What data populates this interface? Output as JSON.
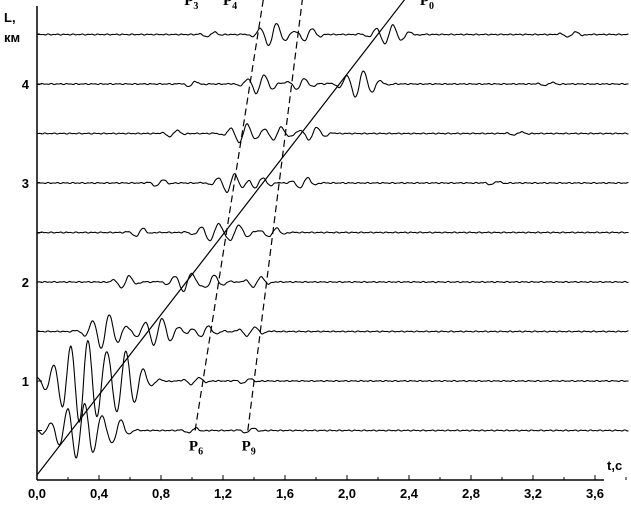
{
  "chart_data": {
    "type": "line",
    "xlabel": "t,c",
    "ylabel_line1": "L,",
    "ylabel_line2": "км",
    "xlim": [
      0,
      3.85
    ],
    "ylim": [
      0,
      4.95
    ],
    "x_ticks": [
      0,
      0.4,
      0.8,
      1.2,
      1.6,
      2.0,
      2.4,
      2.8,
      3.2,
      3.6
    ],
    "x_tick_labels": [
      "0,0",
      "0,4",
      "0,8",
      "1,2",
      "1,6",
      "2,0",
      "2,4",
      "2,8",
      "3,2",
      "3,6"
    ],
    "y_ticks": [
      1,
      2,
      3,
      4
    ],
    "y_tick_labels": [
      "1",
      "2",
      "3",
      "4"
    ],
    "trace_offsets": [
      0.5,
      1.0,
      1.5,
      2.0,
      2.5,
      3.0,
      3.5,
      4.0,
      4.5
    ],
    "trace_end_time": 3.82,
    "trace_events": [
      [
        [
          0.28,
          0.28,
          0.12
        ],
        [
          0.52,
          0.1,
          0.05
        ],
        [
          1.0,
          0.03,
          0.04
        ],
        [
          1.37,
          0.03,
          0.04
        ]
      ],
      [
        [
          0.3,
          0.42,
          0.14
        ],
        [
          0.55,
          0.3,
          0.1
        ],
        [
          1.02,
          0.04,
          0.05
        ],
        [
          1.35,
          0.03,
          0.04
        ]
      ],
      [
        [
          0.44,
          0.18,
          0.08
        ],
        [
          0.78,
          0.14,
          0.09
        ],
        [
          1.08,
          0.06,
          0.06
        ],
        [
          1.38,
          0.05,
          0.06
        ]
      ],
      [
        [
          0.57,
          0.07,
          0.05
        ],
        [
          0.97,
          0.1,
          0.08
        ],
        [
          1.12,
          0.08,
          0.06
        ],
        [
          1.42,
          0.06,
          0.05
        ]
      ],
      [
        [
          0.66,
          0.05,
          0.04
        ],
        [
          1.14,
          0.09,
          0.08
        ],
        [
          1.28,
          0.08,
          0.07
        ],
        [
          1.52,
          0.05,
          0.05
        ]
      ],
      [
        [
          0.79,
          0.04,
          0.04
        ],
        [
          1.25,
          0.1,
          0.07
        ],
        [
          1.43,
          0.06,
          0.06
        ],
        [
          1.72,
          0.06,
          0.05
        ],
        [
          2.95,
          0.02,
          0.04
        ]
      ],
      [
        [
          0.88,
          0.04,
          0.04
        ],
        [
          1.33,
          0.1,
          0.07
        ],
        [
          1.55,
          0.07,
          0.06
        ],
        [
          1.78,
          0.07,
          0.06
        ],
        [
          3.1,
          0.02,
          0.04
        ]
      ],
      [
        [
          1.0,
          0.03,
          0.04
        ],
        [
          1.44,
          0.1,
          0.07
        ],
        [
          1.7,
          0.06,
          0.06
        ],
        [
          2.08,
          0.14,
          0.08
        ],
        [
          3.3,
          0.02,
          0.04
        ]
      ],
      [
        [
          1.12,
          0.03,
          0.04
        ],
        [
          1.52,
          0.12,
          0.07
        ],
        [
          1.75,
          0.07,
          0.05
        ],
        [
          2.27,
          0.1,
          0.08
        ],
        [
          3.45,
          0.03,
          0.05
        ]
      ]
    ],
    "lines": [
      {
        "name": "P0",
        "points": [
          [
            0.0,
            0.05
          ],
          [
            2.42,
            4.95
          ]
        ]
      },
      {
        "name": "P3",
        "points": [
          [
            1.02,
            0.5
          ],
          [
            1.47,
            4.95
          ]
        ]
      },
      {
        "name": "P4",
        "points": [
          [
            1.36,
            0.5
          ],
          [
            1.72,
            4.95
          ]
        ]
      }
    ],
    "line_labels": [
      {
        "main": "P",
        "sub": "0",
        "x": 2.47,
        "y": 4.8
      },
      {
        "main": "P",
        "sub": "3",
        "x": 0.95,
        "y": 4.8
      },
      {
        "main": "P",
        "sub": "4",
        "x": 1.2,
        "y": 4.8
      },
      {
        "main": "P",
        "sub": "6",
        "x": 0.98,
        "y": 0.3
      },
      {
        "main": "P",
        "sub": "9",
        "x": 1.32,
        "y": 0.3
      }
    ],
    "colors": {
      "background": "#ffffff",
      "ink": "#000000"
    },
    "grid": false
  }
}
